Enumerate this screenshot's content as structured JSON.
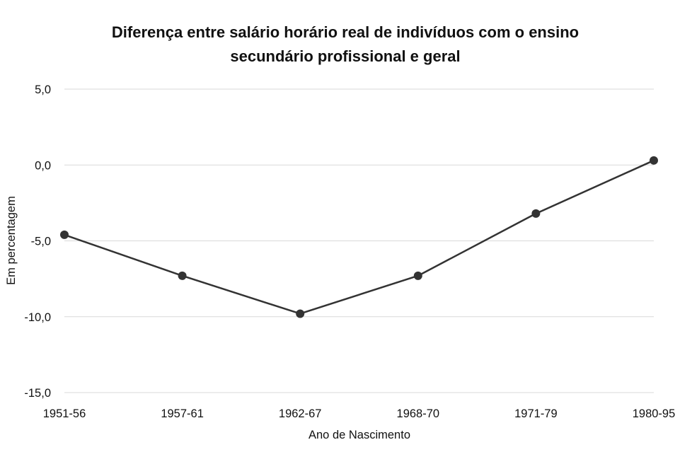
{
  "chart_data": {
    "type": "line",
    "title_lines": [
      "Diferença entre salário horário real de indivíduos com o ensino",
      "secundário profissional e geral"
    ],
    "xlabel": "Ano de Nascimento",
    "ylabel": "Em percentagem",
    "categories": [
      "1951-56",
      "1957-61",
      "1962-67",
      "1968-70",
      "1971-79",
      "1980-95"
    ],
    "series": [
      {
        "values": [
          -4.6,
          -7.3,
          -9.8,
          -7.3,
          -3.2,
          0.3
        ]
      }
    ],
    "ylim": [
      -15,
      5
    ],
    "yticks": [
      5,
      0,
      -5,
      -10,
      -15
    ],
    "ytick_labels": [
      "5,0",
      "0,0",
      "-5,0",
      "-10,0",
      "-15,0"
    ],
    "grid": true,
    "legend": "none",
    "colors": {
      "line": "#333333",
      "grid": "#d9d9d9"
    }
  }
}
